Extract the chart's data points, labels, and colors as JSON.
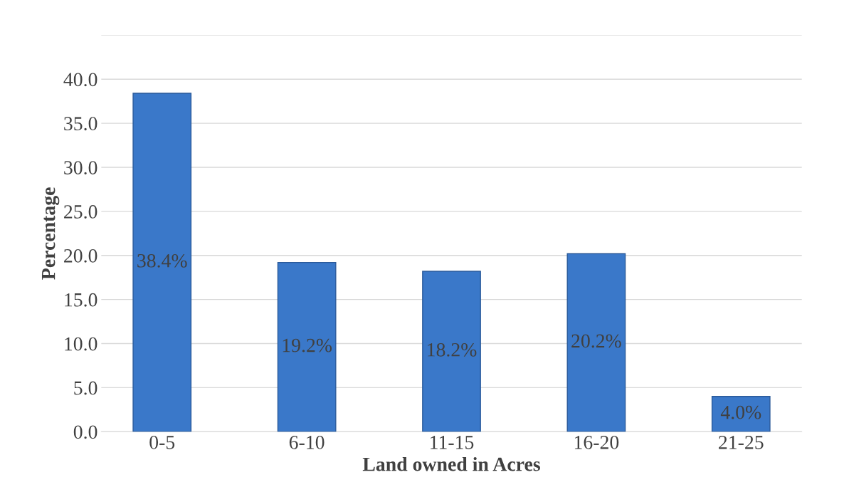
{
  "chart_data": {
    "type": "bar",
    "xlabel": "Land owned in Acres",
    "ylabel": "Percentage",
    "categories": [
      "0-5",
      "6-10",
      "11-15",
      "16-20",
      "21-25"
    ],
    "values": [
      38.4,
      19.2,
      18.2,
      20.2,
      4.0
    ],
    "value_labels": [
      "38.4%",
      "19.2%",
      "18.2%",
      "20.2%",
      "4.0%"
    ],
    "color": "#3a78c9",
    "ylim": [
      0,
      45
    ],
    "yticks": [
      {
        "value": 0,
        "label": "0.0"
      },
      {
        "value": 5,
        "label": "5.0"
      },
      {
        "value": 10,
        "label": "10.0"
      },
      {
        "value": 15,
        "label": "15.0"
      },
      {
        "value": 20,
        "label": "20.0"
      },
      {
        "value": 25,
        "label": "25.0"
      },
      {
        "value": 30,
        "label": "30.0"
      },
      {
        "value": 35,
        "label": "35.0"
      },
      {
        "value": 40,
        "label": "40.0"
      },
      {
        "value": 45,
        "label": null
      }
    ],
    "grid": "y",
    "legend": false
  }
}
